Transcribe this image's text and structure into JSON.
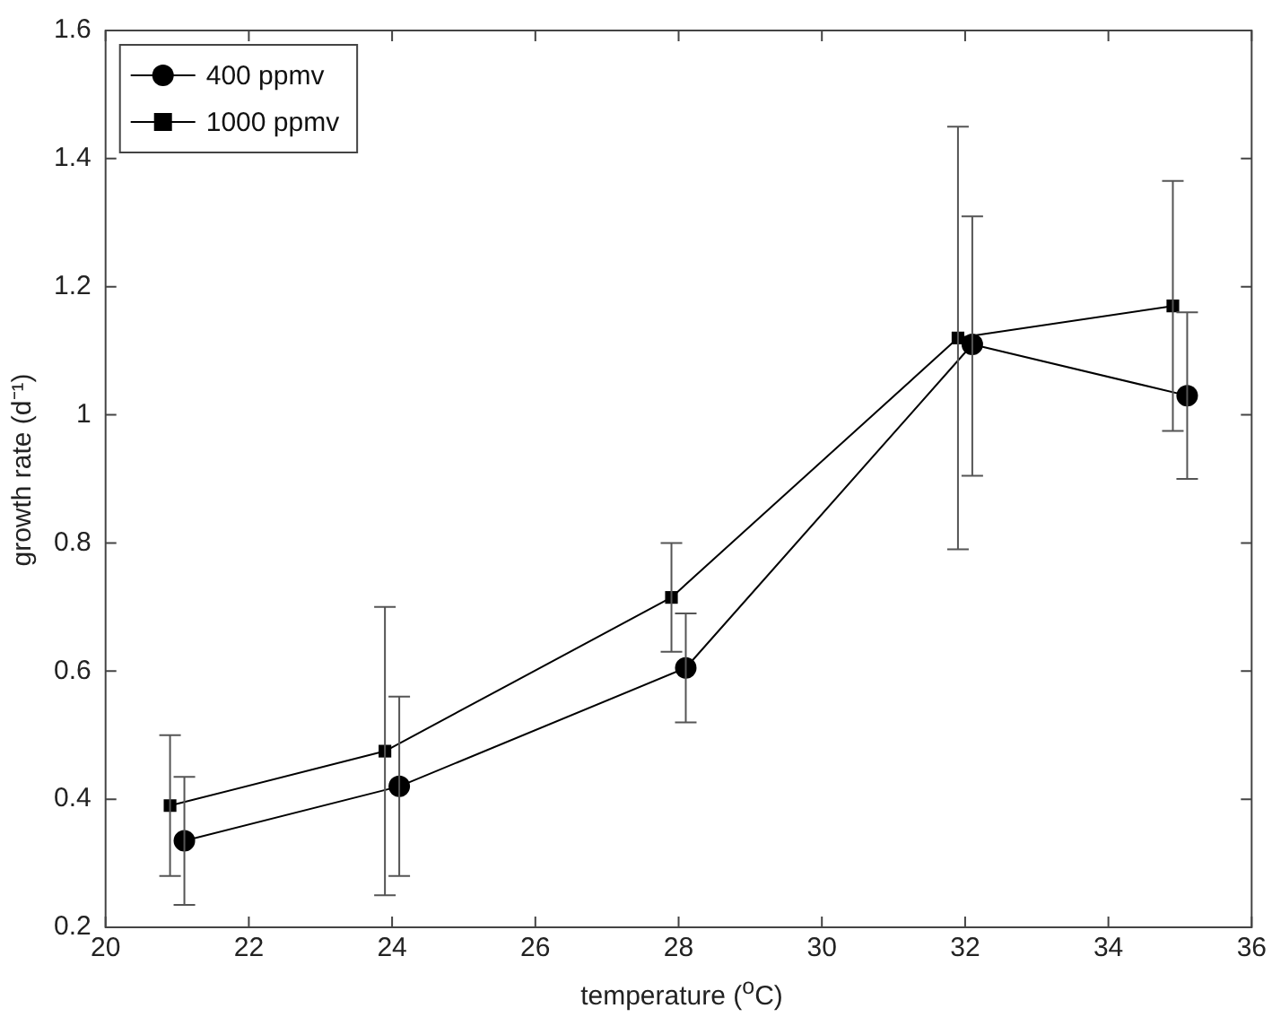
{
  "chart_data": {
    "type": "line",
    "xlabel": "temperature ($^{o}$C)",
    "ylabel": "growth rate (d⁻¹)",
    "xlim": [
      20,
      36
    ],
    "xticks": [
      20,
      22,
      24,
      26,
      28,
      30,
      32,
      34,
      36
    ],
    "ylim": [
      0.2,
      1.6
    ],
    "yticks": [
      0.2,
      0.4,
      0.6,
      0.8,
      1,
      1.2,
      1.4,
      1.6
    ],
    "grid": false,
    "legend": "top left",
    "line_style": "solid",
    "series": [
      {
        "name": "400 ppmv",
        "color": "#000000",
        "marker": "circle",
        "x": [
          21.1,
          24.1,
          28.1,
          32.1,
          35.1
        ],
        "values": [
          0.335,
          0.42,
          0.605,
          1.11,
          1.03
        ],
        "errors": [
          [
            0.235,
            0.435
          ],
          [
            0.28,
            0.56
          ],
          [
            0.52,
            0.69
          ],
          [
            0.905,
            1.31
          ],
          [
            0.9,
            1.16
          ]
        ]
      },
      {
        "name": "1000 ppmv",
        "color": "#000000",
        "marker": "square",
        "x": [
          20.9,
          23.9,
          27.9,
          31.9,
          34.9
        ],
        "values": [
          0.39,
          0.475,
          0.715,
          1.12,
          1.17
        ],
        "errors": [
          [
            0.28,
            0.5
          ],
          [
            0.25,
            0.7
          ],
          [
            0.63,
            0.8
          ],
          [
            0.79,
            1.45
          ],
          [
            0.975,
            1.365
          ]
        ]
      }
    ]
  }
}
